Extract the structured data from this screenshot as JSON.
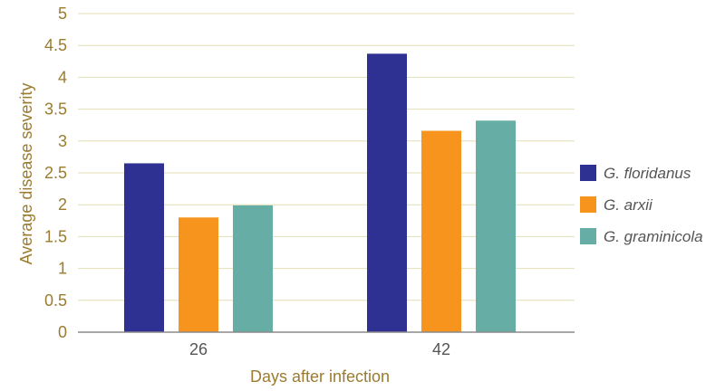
{
  "chart_data": {
    "type": "bar",
    "title": "",
    "xlabel": "Days after infection",
    "ylabel": "Average disease severity",
    "ylim": [
      0,
      5
    ],
    "yticks": [
      "0",
      "0.5",
      "1",
      "1.5",
      "2",
      "2.5",
      "3",
      "3.5",
      "4",
      "4.5",
      "5"
    ],
    "grid": true,
    "legend_position": "right",
    "categories": [
      "26",
      "42"
    ],
    "series": [
      {
        "name": "G. floridanus",
        "color": "#2e3192",
        "values": [
          2.65,
          4.37
        ]
      },
      {
        "name": "G. arxii",
        "color": "#f7941d",
        "values": [
          1.8,
          3.16
        ]
      },
      {
        "name": "G. graminicola",
        "color": "#66ada5",
        "values": [
          1.99,
          3.32
        ]
      }
    ]
  },
  "colors": {
    "grid": "#e3dfb6",
    "axis": "#8a8a8a",
    "tick_text": "#9b7b2f",
    "category_text": "#555555"
  }
}
